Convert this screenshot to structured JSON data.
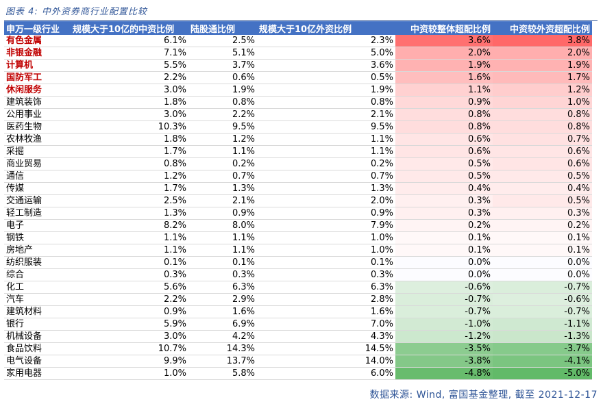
{
  "title": "图表 4:  中外资券商行业配置比较",
  "headers": [
    "申万一级行业",
    "规模大于10亿的中资比例",
    "陆股通比例",
    "规模大于10亿外资比例",
    "中资较整体超配比例",
    "中资较外资超配比例"
  ],
  "highlight_color": "#c00000",
  "rows": [
    {
      "name": "有色金属",
      "a": "6.1%",
      "b": "2.5%",
      "c": "2.3%",
      "d": "3.6%",
      "e": "3.8%",
      "dv": 3.6,
      "ev": 3.8,
      "hl": true
    },
    {
      "name": "非银金融",
      "a": "7.1%",
      "b": "5.1%",
      "c": "5.0%",
      "d": "2.0%",
      "e": "2.0%",
      "dv": 2.0,
      "ev": 2.0,
      "hl": true
    },
    {
      "name": "计算机",
      "a": "5.5%",
      "b": "3.7%",
      "c": "3.6%",
      "d": "1.9%",
      "e": "1.9%",
      "dv": 1.9,
      "ev": 1.9,
      "hl": true
    },
    {
      "name": "国防军工",
      "a": "2.2%",
      "b": "0.6%",
      "c": "0.5%",
      "d": "1.6%",
      "e": "1.7%",
      "dv": 1.6,
      "ev": 1.7,
      "hl": true
    },
    {
      "name": "休闲服务",
      "a": "3.0%",
      "b": "1.9%",
      "c": "1.9%",
      "d": "1.1%",
      "e": "1.2%",
      "dv": 1.1,
      "ev": 1.2,
      "hl": true
    },
    {
      "name": "建筑装饰",
      "a": "1.8%",
      "b": "0.8%",
      "c": "0.8%",
      "d": "0.9%",
      "e": "1.0%",
      "dv": 0.9,
      "ev": 1.0,
      "hl": false
    },
    {
      "name": "公用事业",
      "a": "3.0%",
      "b": "2.2%",
      "c": "2.1%",
      "d": "0.8%",
      "e": "0.8%",
      "dv": 0.8,
      "ev": 0.8,
      "hl": false
    },
    {
      "name": "医药生物",
      "a": "10.3%",
      "b": "9.5%",
      "c": "9.5%",
      "d": "0.8%",
      "e": "0.8%",
      "dv": 0.8,
      "ev": 0.8,
      "hl": false
    },
    {
      "name": "农林牧渔",
      "a": "1.8%",
      "b": "1.2%",
      "c": "1.1%",
      "d": "0.6%",
      "e": "0.7%",
      "dv": 0.6,
      "ev": 0.7,
      "hl": false
    },
    {
      "name": "采掘",
      "a": "1.7%",
      "b": "1.1%",
      "c": "1.1%",
      "d": "0.6%",
      "e": "0.6%",
      "dv": 0.6,
      "ev": 0.6,
      "hl": false
    },
    {
      "name": "商业贸易",
      "a": "0.8%",
      "b": "0.2%",
      "c": "0.2%",
      "d": "0.5%",
      "e": "0.6%",
      "dv": 0.5,
      "ev": 0.6,
      "hl": false
    },
    {
      "name": "通信",
      "a": "1.2%",
      "b": "0.7%",
      "c": "0.7%",
      "d": "0.5%",
      "e": "0.5%",
      "dv": 0.5,
      "ev": 0.5,
      "hl": false
    },
    {
      "name": "传媒",
      "a": "1.7%",
      "b": "1.3%",
      "c": "1.3%",
      "d": "0.4%",
      "e": "0.4%",
      "dv": 0.4,
      "ev": 0.4,
      "hl": false
    },
    {
      "name": "交通运输",
      "a": "2.5%",
      "b": "2.1%",
      "c": "2.0%",
      "d": "0.3%",
      "e": "0.5%",
      "dv": 0.3,
      "ev": 0.5,
      "hl": false
    },
    {
      "name": "轻工制造",
      "a": "1.3%",
      "b": "0.9%",
      "c": "0.9%",
      "d": "0.3%",
      "e": "0.3%",
      "dv": 0.3,
      "ev": 0.3,
      "hl": false
    },
    {
      "name": "电子",
      "a": "8.2%",
      "b": "8.0%",
      "c": "7.9%",
      "d": "0.2%",
      "e": "0.2%",
      "dv": 0.2,
      "ev": 0.2,
      "hl": false
    },
    {
      "name": "钢铁",
      "a": "1.1%",
      "b": "1.1%",
      "c": "1.0%",
      "d": "0.1%",
      "e": "0.1%",
      "dv": 0.1,
      "ev": 0.1,
      "hl": false
    },
    {
      "name": "房地产",
      "a": "1.1%",
      "b": "1.1%",
      "c": "1.0%",
      "d": "0.1%",
      "e": "0.1%",
      "dv": 0.1,
      "ev": 0.1,
      "hl": false
    },
    {
      "name": "纺织服装",
      "a": "0.1%",
      "b": "0.1%",
      "c": "0.1%",
      "d": "0.0%",
      "e": "0.0%",
      "dv": 0.0,
      "ev": 0.0,
      "hl": false
    },
    {
      "name": "综合",
      "a": "0.3%",
      "b": "0.3%",
      "c": "0.3%",
      "d": "0.0%",
      "e": "0.0%",
      "dv": 0.0,
      "ev": 0.0,
      "hl": false
    },
    {
      "name": "化工",
      "a": "5.6%",
      "b": "6.3%",
      "c": "6.3%",
      "d": "-0.6%",
      "e": "-0.7%",
      "dv": -0.6,
      "ev": -0.7,
      "hl": false
    },
    {
      "name": "汽车",
      "a": "2.2%",
      "b": "2.9%",
      "c": "2.8%",
      "d": "-0.7%",
      "e": "-0.6%",
      "dv": -0.7,
      "ev": -0.6,
      "hl": false
    },
    {
      "name": "建筑材料",
      "a": "0.9%",
      "b": "1.6%",
      "c": "1.6%",
      "d": "-0.7%",
      "e": "-0.7%",
      "dv": -0.7,
      "ev": -0.7,
      "hl": false
    },
    {
      "name": "银行",
      "a": "5.9%",
      "b": "6.9%",
      "c": "7.0%",
      "d": "-1.0%",
      "e": "-1.1%",
      "dv": -1.0,
      "ev": -1.1,
      "hl": false
    },
    {
      "name": "机械设备",
      "a": "3.0%",
      "b": "4.2%",
      "c": "4.3%",
      "d": "-1.2%",
      "e": "-1.3%",
      "dv": -1.2,
      "ev": -1.3,
      "hl": false
    },
    {
      "name": "食品饮料",
      "a": "10.7%",
      "b": "14.3%",
      "c": "14.5%",
      "d": "-3.5%",
      "e": "-3.7%",
      "dv": -3.5,
      "ev": -3.7,
      "hl": false
    },
    {
      "name": "电气设备",
      "a": "9.9%",
      "b": "13.7%",
      "c": "14.0%",
      "d": "-3.8%",
      "e": "-4.1%",
      "dv": -3.8,
      "ev": -4.1,
      "hl": false
    },
    {
      "name": "家用电器",
      "a": "1.0%",
      "b": "5.8%",
      "c": "6.0%",
      "d": "-4.8%",
      "e": "-5.0%",
      "dv": -4.8,
      "ev": -5.0,
      "hl": false
    }
  ],
  "source": "数据来源:  Wind, 富国基金整理, 截至 2021-12-17"
}
